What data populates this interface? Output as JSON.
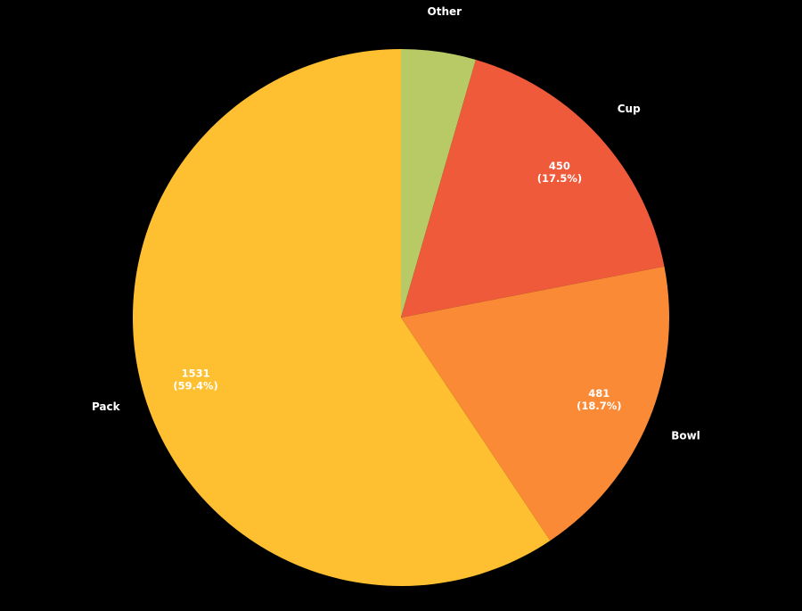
{
  "chart_data": {
    "type": "pie",
    "title": "",
    "start_angle_deg": 90,
    "direction": "clockwise",
    "slices": [
      {
        "label": "Other",
        "value": 116,
        "percent_label": "",
        "value_label": "",
        "color": "#b8ca65"
      },
      {
        "label": "Cup",
        "value": 450,
        "percent_label": "(17.5%)",
        "value_label": "450",
        "color": "#ee5a3a"
      },
      {
        "label": "Bowl",
        "value": 481,
        "percent_label": "(18.7%)",
        "value_label": "481",
        "color": "#fb8a36"
      },
      {
        "label": "Pack",
        "value": 1531,
        "percent_label": "(59.4%)",
        "value_label": "1531",
        "color": "#febf30"
      }
    ]
  }
}
